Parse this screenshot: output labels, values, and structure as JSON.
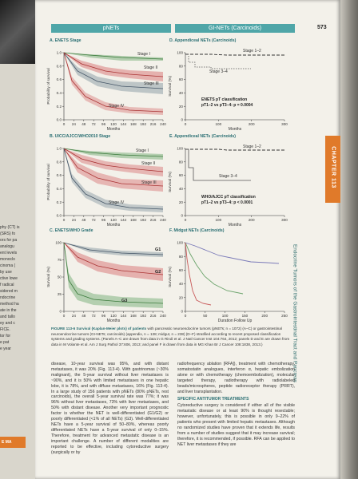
{
  "header": {
    "left_section": "pNETs",
    "right_section": "GI-NETs (Carcinoids)",
    "page_number": "573"
  },
  "chapter_tab": "CHAPTER 113",
  "side_title": "Endocrine Tumors of the Gastrointestinal Tract and Pancreas",
  "prev_page_fragments": [
    "phy (CT) is",
    "(SRS) fo",
    "ors for pa",
    "analogu",
    "ent levels",
    "monoclo",
    "cinoma (",
    "by use",
    "ctive lowe",
    "f radical",
    "sidered m",
    "ndocrine",
    "method ha",
    "ate in the",
    "and tallo",
    "ey and c",
    "FICE.",
    "tor  for",
    "e pat",
    "e year"
  ],
  "prev_page_badge": "E MA",
  "panels": {
    "A": {
      "title": "A. ENETS Stage",
      "xlabel": "Months",
      "ylabel": "Probability of survival",
      "xticks": [
        "0",
        "24",
        "48",
        "72",
        "96",
        "120",
        "144",
        "168",
        "192",
        "216",
        "240"
      ],
      "yticks": [
        "0.0",
        "0.2",
        "0.4",
        "0.6",
        "0.8",
        "1.0"
      ],
      "stage_labels": [
        "Stage I",
        "Stage II",
        "Stage III",
        "Stage IV"
      ]
    },
    "B": {
      "title": "B. UICC/AJCC/WHO2010 Stage",
      "xlabel": "Months",
      "ylabel": "Probability of survival",
      "xticks": [
        "0",
        "24",
        "48",
        "72",
        "96",
        "120",
        "144",
        "168",
        "192",
        "216",
        "240"
      ],
      "yticks": [
        "0.0",
        "0.2",
        "0.4",
        "0.6",
        "0.8",
        "1.0"
      ],
      "stage_labels": [
        "Stage I",
        "Stage II",
        "Stage III",
        "Stage IV"
      ]
    },
    "C": {
      "title": "C. ENETS/WHO Grade",
      "xlabel": "Months",
      "ylabel": "Survival (%)",
      "xticks": [
        "0",
        "24",
        "48",
        "72",
        "96",
        "120",
        "144",
        "168",
        "192",
        "216",
        "240"
      ],
      "yticks": [
        "0",
        "25",
        "50",
        "75",
        "100"
      ],
      "grade_labels": [
        "G1",
        "G2",
        "G3"
      ]
    },
    "D": {
      "title": "D. Appendiceal NETs (Carcinoids)",
      "xlabel": "Months",
      "ylabel": "Survival (%)",
      "xticks": [
        "0",
        "100",
        "200",
        "300"
      ],
      "yticks": [
        "0",
        "20",
        "40",
        "60",
        "80",
        "100"
      ],
      "stage_labels": [
        "Stage 1–2",
        "Stage 3–4"
      ],
      "annotation": [
        "ENETS pT classification",
        "pT1–2 vs pT3–4: p = 0.0004"
      ]
    },
    "E": {
      "title": "E. Appendiceal NETs (Carcinoids)",
      "xlabel": "Months",
      "ylabel": "Survival (%)",
      "xticks": [
        "0",
        "100",
        "200",
        "300"
      ],
      "yticks": [
        "0",
        "20",
        "40",
        "60",
        "80",
        "100"
      ],
      "stage_labels": [
        "Stage 1–2",
        "Stage 3–4"
      ],
      "annotation": [
        "WHO/AJCC pT classification",
        "pT1–2 vs pT3–4: p < 0.0001"
      ]
    },
    "F": {
      "title": "F. Midgut NETs (Carcinoids)",
      "xlabel": "Duration Follow Up",
      "ylabel": "Survival (%)",
      "xticks": [
        "0",
        "50",
        "100",
        "150",
        "200",
        "250"
      ],
      "yticks": [
        "0",
        "20",
        "40",
        "60",
        "80",
        "100"
      ]
    }
  },
  "caption": {
    "label": "FIGURE 113-6",
    "title": "Survival (Kaplan-Meier plots) of patients",
    "body": " with pancreatic neuroendocrine tumors (pNETs; n = 1072) (A–C) or gastrointestinal neuroendocrine tumors (GI-NETs; carcinoids) (appendix, n = 138; midgut, n = 238) (D–F) stratified according to recent proposed classification systems and grading systems. (Panels A–C are drawn from data in G Rindi et al. J Natl Cancer Inst 104:764, 2012; panels D and E are drawn from data in M Volante et al. Am J Surg Pathol 37:606, 2013; and panel F is drawn from data in MG Khan Br J Cancer 108:1838, 2013.)"
  },
  "body": {
    "left_col": "disease, 10-year survival was 95%, and with distant metastases, it was 20% (Fig. 113-4). With gastrinomas (~30% malignant), the 5-year survival without liver metastases is ~90%, and it is 50% with limited metastases in one hepatic lobe, it is 78%, and with diffuse metastases, 16% (Fig. 113-4). In a large study of 156 patients with pNETs (80% pNETs, rest carcinoids), the overall 5-year survival rate was 77%; it was 96% without liver metastases, 73% with liver metastases, and 50% with distant disease. Another very important prognostic factor is whether the NET is well-differentiated (G1/G2) or poorly differentiated (<1% of all NETs) (G3). Well-differentiated NETs have a 5-year survival of 50–80%, whereas poorly differentiated NETs have a 5-year survival of only 0–15%. Therefore, treatment for advanced metastatic disease is an important challenge. A number of different modalities are reported to be effective, including cytoreductive surgery (surgically or by",
    "right_col_1": "radiofrequency ablation [RFA]), treatment with chemotherapy, somatostatin analogues, interferon α, hepatic embolization alone or with chemotherapy (chemoembolization), molecular targeted therapy, radiotherapy with radiolabeled beads/microspheres, peptide radioreceptor therapy (PRRT), and liver transplantation.",
    "subhead": "SPECIFIC ANTITUMOR TREATMENTS",
    "right_col_2": "Cytoreductive surgery is considered if either all of the visible metastatic disease or at least 90% is thought resectable; however, unfortunately, this is possible in only 9–22% of patients who present with limited hepatic metastases. Although no randomized studies have proven that it extends life, results from a number of studies suggest that it may increase survival; therefore, it is recommended, if possible. RFA can be applied to NET liver metastases if they are"
  },
  "colors": {
    "teal": "#4fa6a8",
    "chapter_orange": "#e07a2a",
    "band_red": "#d97b7b",
    "band_green": "#7fb37f",
    "band_gray": "#8fa0a8"
  }
}
